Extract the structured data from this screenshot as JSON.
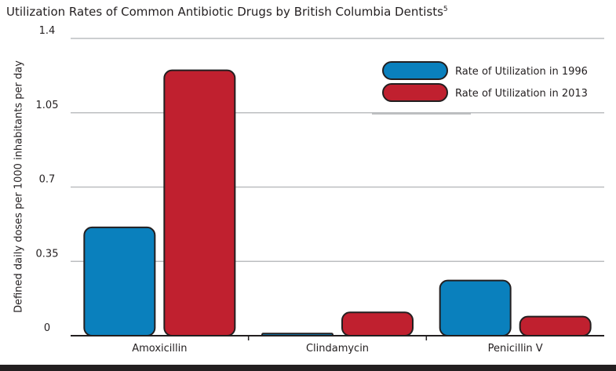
{
  "chart_data": {
    "type": "bar",
    "title": "Utilization Rates of Common Antibiotic Drugs by British Columbia Dentists",
    "title_superscript": "5",
    "xlabel": "",
    "ylabel": "Defined daily doses per 1000 inhabitants per day",
    "categories": [
      "Amoxicillin",
      "Clindamycin",
      "Penicillin V"
    ],
    "series": [
      {
        "name": "Rate of Utilization in 1996",
        "values": [
          0.51,
          0.01,
          0.26
        ],
        "color": "#0a80bd"
      },
      {
        "name": "Rate of Utilization in 2013",
        "values": [
          1.25,
          0.11,
          0.09
        ],
        "color": "#c0202f"
      }
    ],
    "ylim": [
      0,
      1.4
    ],
    "yticks": [
      0,
      0.35,
      0.7,
      1.05,
      1.4
    ],
    "ytick_labels": [
      "0",
      "0.35",
      "0.7",
      "1.05",
      "1.4"
    ],
    "grid": true,
    "legend_position": "top-right"
  }
}
